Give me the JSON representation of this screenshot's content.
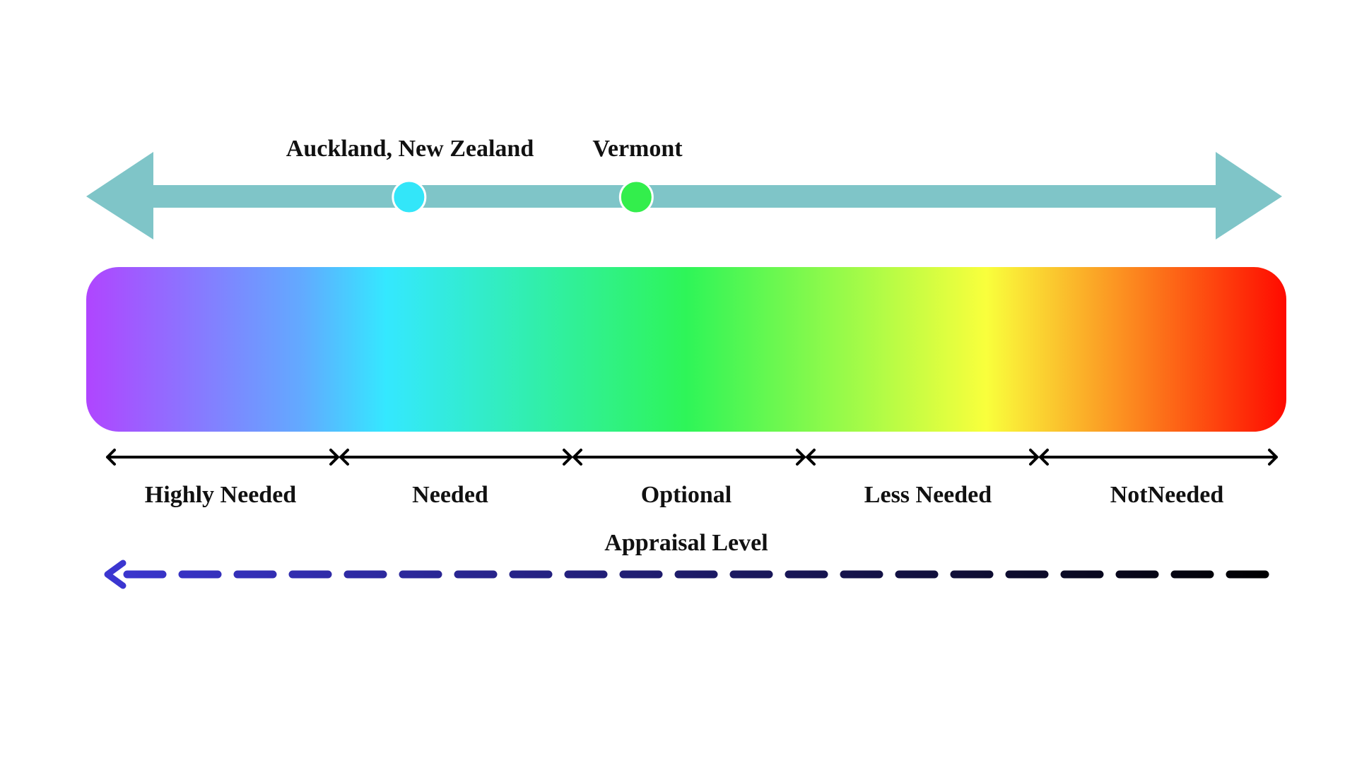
{
  "locations": [
    {
      "name": "Auckland, New Zealand",
      "color": "#33e6f9",
      "position": 0.27
    },
    {
      "name": "Vermont",
      "color": "#33ee4c",
      "position": 0.46
    }
  ],
  "scale_arrow_color": "#7fc5c8",
  "gradient_colors": [
    "#b045ff",
    "#62aaff",
    "#34e8ff",
    "#2ef558",
    "#f9ff3c",
    "#ff0a00"
  ],
  "categories": [
    "Highly Needed",
    "Needed",
    "Optional",
    "Less Needed",
    "NotNeeded"
  ],
  "axis_label": "Appraisal Level",
  "axis_direction": "left",
  "axis_colors": [
    "#3b36d0",
    "#000000"
  ]
}
